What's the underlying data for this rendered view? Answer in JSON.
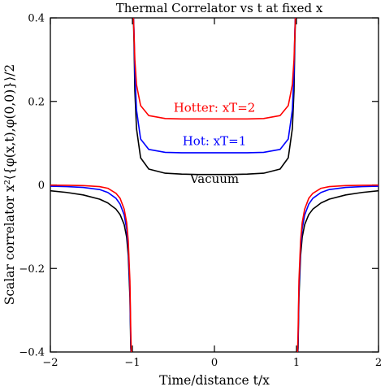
{
  "chart_data": {
    "type": "line",
    "title": "Thermal Correlator vs t at fixed x",
    "xlabel": "Time/distance t/x",
    "ylabel": "Scalar correlator x²⟨{φ(x,t),φ(0,0)}⟩/2",
    "xlim": [
      -2,
      2
    ],
    "ylim": [
      -0.4,
      0.4
    ],
    "x_ticks": [
      {
        "value": -2,
        "label": "−2"
      },
      {
        "value": -1,
        "label": "−1"
      },
      {
        "value": 0,
        "label": "0"
      },
      {
        "value": 1,
        "label": "1"
      },
      {
        "value": 2,
        "label": "2"
      }
    ],
    "y_ticks": [
      {
        "value": -0.4,
        "label": "−0.4"
      },
      {
        "value": -0.2,
        "label": "−0.2"
      },
      {
        "value": 0,
        "label": "0"
      },
      {
        "value": 0.2,
        "label": "0.2"
      },
      {
        "value": 0.4,
        "label": "0.4"
      }
    ],
    "grid": false,
    "series": [
      {
        "name": "Vacuum",
        "color": "#000000",
        "x": [
          -2.0,
          -1.8,
          -1.6,
          -1.4,
          -1.3,
          -1.2,
          -1.15,
          -1.1,
          -1.07,
          -1.05,
          -1.03,
          -1.02,
          -1.01,
          -0.99,
          -0.98,
          -0.97,
          -0.95,
          -0.9,
          -0.8,
          -0.6,
          -0.4,
          -0.2,
          0.0,
          0.2,
          0.4,
          0.6,
          0.8,
          0.9,
          0.95,
          0.97,
          0.98,
          0.99,
          1.01,
          1.02,
          1.03,
          1.05,
          1.07,
          1.1,
          1.15,
          1.2,
          1.3,
          1.4,
          1.6,
          1.8,
          2.0
        ],
        "y": [
          -0.014,
          -0.018,
          -0.024,
          -0.034,
          -0.043,
          -0.058,
          -0.071,
          -0.095,
          -0.125,
          -0.17,
          -0.27,
          -0.39,
          -0.42,
          0.42,
          0.34,
          0.225,
          0.135,
          0.065,
          0.038,
          0.028,
          0.026,
          0.025,
          0.025,
          0.025,
          0.026,
          0.028,
          0.038,
          0.065,
          0.135,
          0.225,
          0.34,
          0.42,
          -0.42,
          -0.39,
          -0.27,
          -0.17,
          -0.125,
          -0.095,
          -0.071,
          -0.058,
          -0.043,
          -0.034,
          -0.024,
          -0.018,
          -0.014
        ]
      },
      {
        "name": "Hot: xT=1",
        "color": "#0000ff",
        "x": [
          -2.0,
          -1.8,
          -1.6,
          -1.4,
          -1.3,
          -1.2,
          -1.15,
          -1.1,
          -1.07,
          -1.05,
          -1.03,
          -1.02,
          -1.01,
          -0.99,
          -0.98,
          -0.97,
          -0.95,
          -0.9,
          -0.8,
          -0.6,
          -0.4,
          -0.2,
          0.0,
          0.2,
          0.4,
          0.6,
          0.8,
          0.9,
          0.95,
          0.97,
          0.98,
          0.99,
          1.01,
          1.02,
          1.03,
          1.05,
          1.07,
          1.1,
          1.15,
          1.2,
          1.3,
          1.4,
          1.6,
          1.8,
          2.0
        ],
        "y": [
          -0.003,
          -0.004,
          -0.006,
          -0.011,
          -0.018,
          -0.032,
          -0.046,
          -0.072,
          -0.105,
          -0.15,
          -0.25,
          -0.37,
          -0.42,
          0.42,
          0.37,
          0.27,
          0.18,
          0.11,
          0.085,
          0.078,
          0.077,
          0.077,
          0.077,
          0.077,
          0.077,
          0.078,
          0.085,
          0.11,
          0.18,
          0.27,
          0.37,
          0.42,
          -0.42,
          -0.37,
          -0.25,
          -0.15,
          -0.105,
          -0.072,
          -0.046,
          -0.032,
          -0.018,
          -0.011,
          -0.006,
          -0.004,
          -0.003
        ]
      },
      {
        "name": "Hotter: xT=2",
        "color": "#ff0000",
        "x": [
          -2.0,
          -1.8,
          -1.6,
          -1.4,
          -1.3,
          -1.2,
          -1.15,
          -1.1,
          -1.07,
          -1.05,
          -1.03,
          -1.02,
          -1.01,
          -0.99,
          -0.98,
          -0.97,
          -0.95,
          -0.9,
          -0.8,
          -0.6,
          -0.4,
          -0.2,
          0.0,
          0.2,
          0.4,
          0.6,
          0.8,
          0.9,
          0.95,
          0.97,
          0.98,
          0.99,
          1.01,
          1.02,
          1.03,
          1.05,
          1.07,
          1.1,
          1.15,
          1.2,
          1.3,
          1.4,
          1.6,
          1.8,
          2.0
        ],
        "y": [
          -0.0005,
          -0.0008,
          -0.0015,
          -0.004,
          -0.008,
          -0.02,
          -0.032,
          -0.058,
          -0.09,
          -0.135,
          -0.23,
          -0.35,
          -0.42,
          0.42,
          0.36,
          0.3,
          0.24,
          0.19,
          0.166,
          0.159,
          0.158,
          0.158,
          0.158,
          0.158,
          0.158,
          0.159,
          0.166,
          0.19,
          0.24,
          0.3,
          0.36,
          0.42,
          -0.42,
          -0.35,
          -0.23,
          -0.135,
          -0.09,
          -0.058,
          -0.032,
          -0.02,
          -0.008,
          -0.004,
          -0.0015,
          -0.0008,
          -0.0005
        ]
      }
    ],
    "annotations": [
      {
        "text": "Hotter: xT=2",
        "color": "#ff0000",
        "x": 0.0,
        "y": 0.175
      },
      {
        "text": "Hot: xT=1",
        "color": "#0000ff",
        "x": 0.0,
        "y": 0.095
      },
      {
        "text": "Vacuum",
        "color": "#000000",
        "x": 0.0,
        "y": 0.005
      }
    ]
  }
}
